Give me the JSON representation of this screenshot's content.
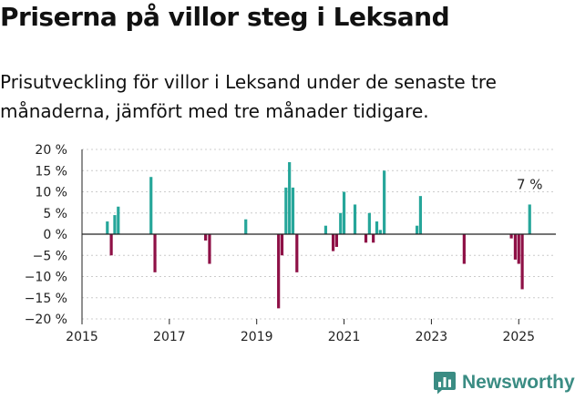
{
  "header": {
    "title": "Priserna på villor steg i Leksand",
    "subtitle": "Prisutveckling för villor i Leksand under de senaste tre månaderna, jämfört med tre månader tidigare."
  },
  "brand": {
    "name": "Newsworthy"
  },
  "colors": {
    "positive": "#26a69a",
    "negative": "#8e1046",
    "axis": "#222222",
    "grid": "#cccccc",
    "brand": "#3a8c83"
  },
  "chart_data": {
    "type": "bar",
    "title": "Priserna på villor steg i Leksand",
    "subtitle": "Prisutveckling för villor i Leksand under de senaste tre månaderna, jämfört med tre månader tidigare.",
    "xlabel": "",
    "ylabel": "",
    "ylim": [
      -20,
      20
    ],
    "xlim": [
      2015,
      2025.85
    ],
    "y_ticks": [
      20,
      15,
      10,
      5,
      0,
      -5,
      -10,
      -15,
      -20
    ],
    "y_tick_labels": [
      "20 %",
      "15 %",
      "10 %",
      "5 %",
      "0 %",
      "−5 %",
      "−10 %",
      "−15 %",
      "−20 %"
    ],
    "x_ticks": [
      2015,
      2017,
      2019,
      2021,
      2023,
      2025
    ],
    "x_tick_labels": [
      "2015",
      "2017",
      "2019",
      "2021",
      "2023",
      "2025"
    ],
    "grid": true,
    "annotation": {
      "text": "7 %",
      "x": 2025.25,
      "y": 7
    },
    "bar_width_years": 0.0833,
    "x": [
      2015.58,
      2015.67,
      2015.75,
      2015.83,
      2016.58,
      2016.67,
      2017.83,
      2017.92,
      2018.75,
      2019.5,
      2019.58,
      2019.67,
      2019.75,
      2019.83,
      2019.92,
      2020.58,
      2020.75,
      2020.83,
      2020.92,
      2021.0,
      2021.25,
      2021.5,
      2021.58,
      2021.67,
      2021.75,
      2021.83,
      2021.92,
      2022.67,
      2022.75,
      2023.75,
      2024.83,
      2024.92,
      2025.0,
      2025.08,
      2025.25
    ],
    "values": [
      3,
      -5,
      4.5,
      6.5,
      13.5,
      -9,
      -1.5,
      -7,
      3.5,
      -17.5,
      -5,
      11,
      17,
      11,
      -9,
      2,
      -4,
      -3,
      5,
      10,
      7,
      -2,
      5,
      -2,
      3,
      1,
      15,
      2,
      9,
      -7,
      -1,
      -6,
      -7,
      -13,
      7
    ]
  }
}
